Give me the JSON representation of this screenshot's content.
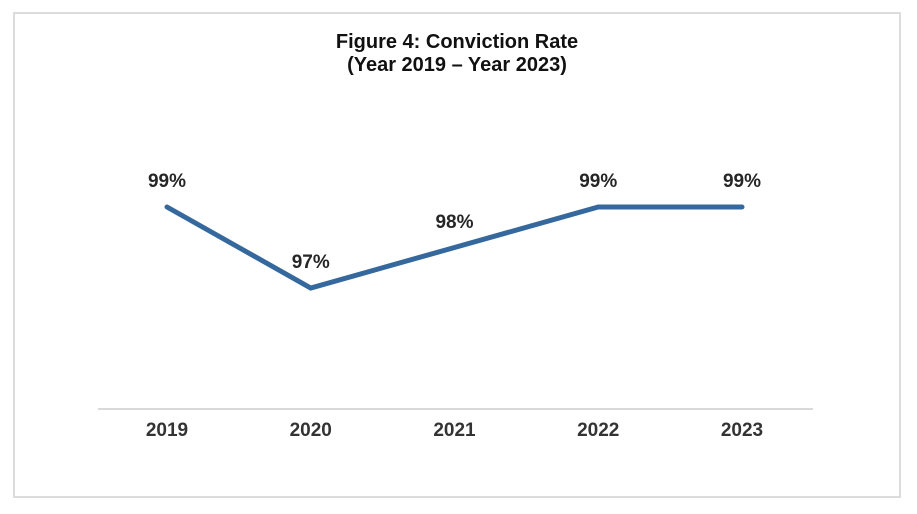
{
  "figure": {
    "title_line1": "Figure 4: Conviction Rate",
    "title_line2": "(Year 2019 – Year 2023)"
  },
  "chart_data": {
    "type": "line",
    "title": "Figure 4: Conviction Rate (Year 2019 – Year 2023)",
    "categories": [
      "2019",
      "2020",
      "2021",
      "2022",
      "2023"
    ],
    "values": [
      99,
      97,
      98,
      99,
      99
    ],
    "data_labels": [
      "99%",
      "97%",
      "98%",
      "99%",
      "99%"
    ],
    "xlabel": "",
    "ylabel": "",
    "ylim": [
      96,
      100
    ],
    "grid": false,
    "legend": false,
    "markers": false,
    "line_color": "#35689d",
    "axis_line_color": "#d9d9d9",
    "data_label_color": "#262626",
    "tick_label_color": "#333333"
  }
}
